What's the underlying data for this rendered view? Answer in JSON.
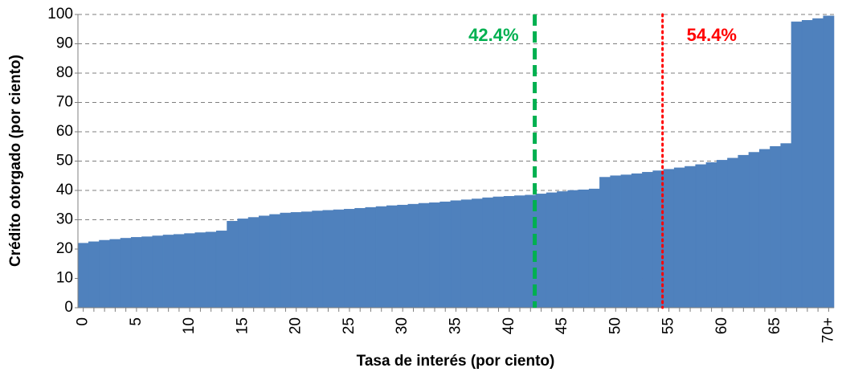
{
  "chart_data": {
    "type": "step-area",
    "x_label": "Tasa de interés  (por ciento)",
    "y_label": "Crédito otorgado  (por ciento)",
    "categories": [
      "0",
      null,
      null,
      null,
      null,
      "5",
      null,
      null,
      null,
      null,
      "10",
      null,
      null,
      null,
      null,
      "15",
      null,
      null,
      null,
      null,
      "20",
      null,
      null,
      null,
      null,
      "25",
      null,
      null,
      null,
      null,
      "30",
      null,
      null,
      null,
      null,
      "35",
      null,
      null,
      null,
      null,
      "40",
      null,
      null,
      null,
      null,
      "45",
      null,
      null,
      null,
      null,
      "50",
      null,
      null,
      null,
      null,
      "55",
      null,
      null,
      null,
      null,
      "60",
      null,
      null,
      null,
      null,
      "65",
      null,
      null,
      null,
      null,
      "70+"
    ],
    "values": [
      22,
      22.5,
      23,
      23.3,
      23.7,
      24,
      24.2,
      24.5,
      24.8,
      25,
      25.3,
      25.6,
      25.8,
      26.2,
      29.5,
      30.3,
      30.8,
      31.3,
      31.8,
      32.3,
      32.5,
      32.7,
      33,
      33.2,
      33.4,
      33.6,
      33.9,
      34.2,
      34.5,
      34.8,
      35,
      35.3,
      35.6,
      35.8,
      36.1,
      36.5,
      36.8,
      37.1,
      37.5,
      37.8,
      38,
      38.2,
      38.4,
      38.8,
      39.2,
      39.6,
      40,
      40.2,
      40.5,
      44.5,
      45,
      45.3,
      45.7,
      46.2,
      46.7,
      47.2,
      47.7,
      48.2,
      48.8,
      49.5,
      50.3,
      51,
      52,
      53,
      54,
      55,
      56,
      97.5,
      98,
      98.6,
      99.5
    ],
    "color": "#4f81bd",
    "ylim": [
      0,
      100
    ],
    "yticks": [
      0,
      10,
      20,
      30,
      40,
      50,
      60,
      70,
      80,
      90,
      100
    ],
    "grid": true,
    "vlines": [
      {
        "value": 42.4,
        "label": "42.4%",
        "color": "#00b050",
        "style": "dashed"
      },
      {
        "value": 54.4,
        "label": "54.4%",
        "color": "#ff0000",
        "style": "dotted"
      }
    ]
  }
}
